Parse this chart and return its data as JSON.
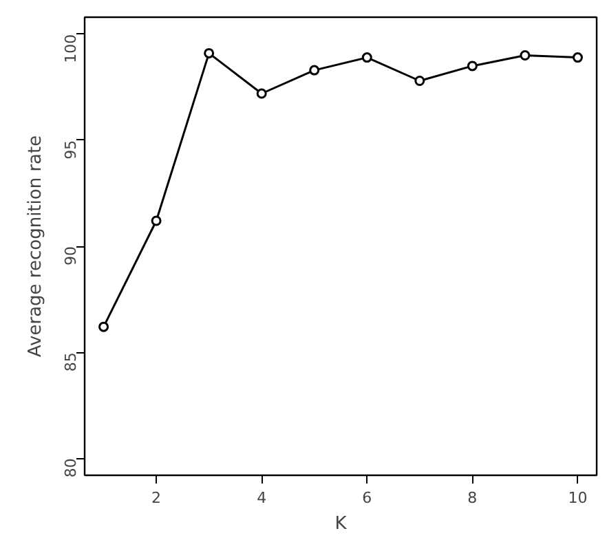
{
  "chart_data": {
    "type": "line",
    "xlabel": "K",
    "ylabel": "Average recognition rate",
    "x": [
      1,
      2,
      3,
      4,
      5,
      6,
      7,
      8,
      9,
      10
    ],
    "series": [
      {
        "color": "#000000",
        "values": [
          86.2,
          91.2,
          99.1,
          97.2,
          98.3,
          98.9,
          97.8,
          98.5,
          99.0,
          98.9
        ]
      }
    ],
    "xlim": [
      0.64,
      10.36
    ],
    "ylim": [
      79.2,
      100.8
    ],
    "xticks": [
      2,
      4,
      6,
      8,
      10
    ],
    "yticks": [
      80,
      85,
      90,
      95,
      100
    ],
    "marker": "circle",
    "line_style": "solid",
    "grid": false
  }
}
